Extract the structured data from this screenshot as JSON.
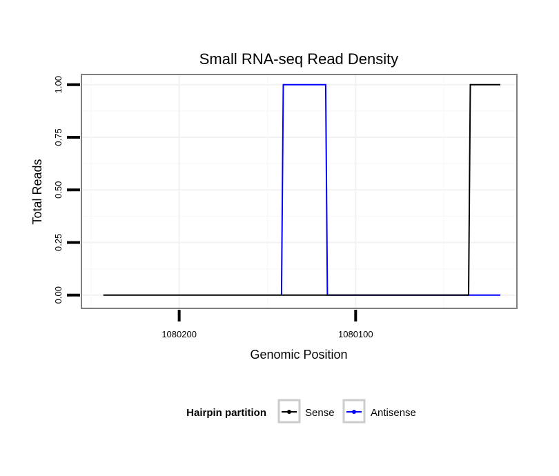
{
  "chart_data": {
    "type": "line",
    "title": "Small RNA-seq Read Density",
    "xlabel": "Genomic Position",
    "ylabel": "Total Reads",
    "x_reversed": true,
    "xlim": [
      1080255,
      1080009
    ],
    "ylim": [
      -0.06,
      1.045
    ],
    "x_ticks": [
      {
        "value": 1080200,
        "label": "1080200"
      },
      {
        "value": 1080100,
        "label": "1080100"
      }
    ],
    "y_ticks": [
      {
        "value": 0.0,
        "label": "0.00"
      },
      {
        "value": 0.25,
        "label": "0.25"
      },
      {
        "value": 0.5,
        "label": "0.50"
      },
      {
        "value": 0.75,
        "label": "0.75"
      },
      {
        "value": 1.0,
        "label": "1.00"
      }
    ],
    "grid": true,
    "legend": {
      "title": "Hairpin partition",
      "position": "bottom"
    },
    "series": [
      {
        "name": "Sense",
        "color": "#000000",
        "points": [
          {
            "x": 1080243,
            "y": 0
          },
          {
            "x": 1080036,
            "y": 0
          },
          {
            "x": 1080035,
            "y": 1
          },
          {
            "x": 1080018,
            "y": 1
          }
        ]
      },
      {
        "name": "Antisense",
        "color": "#0000ff",
        "points": [
          {
            "x": 1080142,
            "y": 0
          },
          {
            "x": 1080141,
            "y": 1
          },
          {
            "x": 1080117,
            "y": 1
          },
          {
            "x": 1080116,
            "y": 0
          },
          {
            "x": 1080036,
            "y": 0
          },
          {
            "x": 1080018,
            "y": 0
          }
        ]
      }
    ]
  }
}
